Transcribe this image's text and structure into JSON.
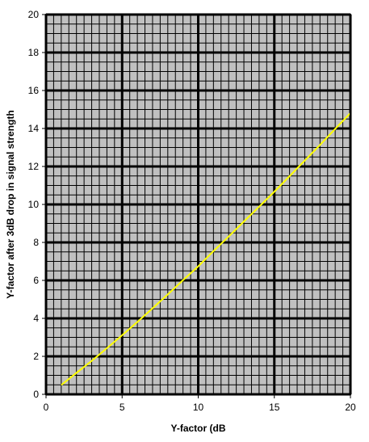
{
  "chart_data": {
    "type": "line",
    "title": "",
    "xlabel": "Y-factor (dB",
    "ylabel": "Y-factor after 3dB drop in signal strength",
    "xlim": [
      0,
      20
    ],
    "ylim": [
      0,
      20
    ],
    "x_major_ticks": [
      0,
      5,
      10,
      15,
      20
    ],
    "y_major_ticks": [
      0,
      2,
      4,
      6,
      8,
      10,
      12,
      14,
      16,
      18,
      20
    ],
    "x_minor_step": 0.5,
    "y_minor_step": 0.5,
    "grid": true,
    "legend": "none",
    "colors": {
      "plot_background": "#c0c0c0",
      "minor_grid": "#000000",
      "major_grid": "#000000",
      "series_line": "#ffff00"
    },
    "series": [
      {
        "x": [
          1,
          2,
          3,
          4,
          5,
          6,
          7,
          8,
          9,
          10,
          11,
          12,
          13,
          14,
          15,
          16,
          17,
          18,
          19,
          20
        ],
        "y": [
          0.49,
          1.13,
          1.76,
          2.43,
          3.11,
          3.81,
          4.53,
          5.26,
          6.01,
          6.74,
          7.54,
          8.31,
          9.1,
          9.88,
          10.67,
          11.49,
          12.31,
          13.13,
          13.98,
          14.81
        ]
      }
    ]
  }
}
